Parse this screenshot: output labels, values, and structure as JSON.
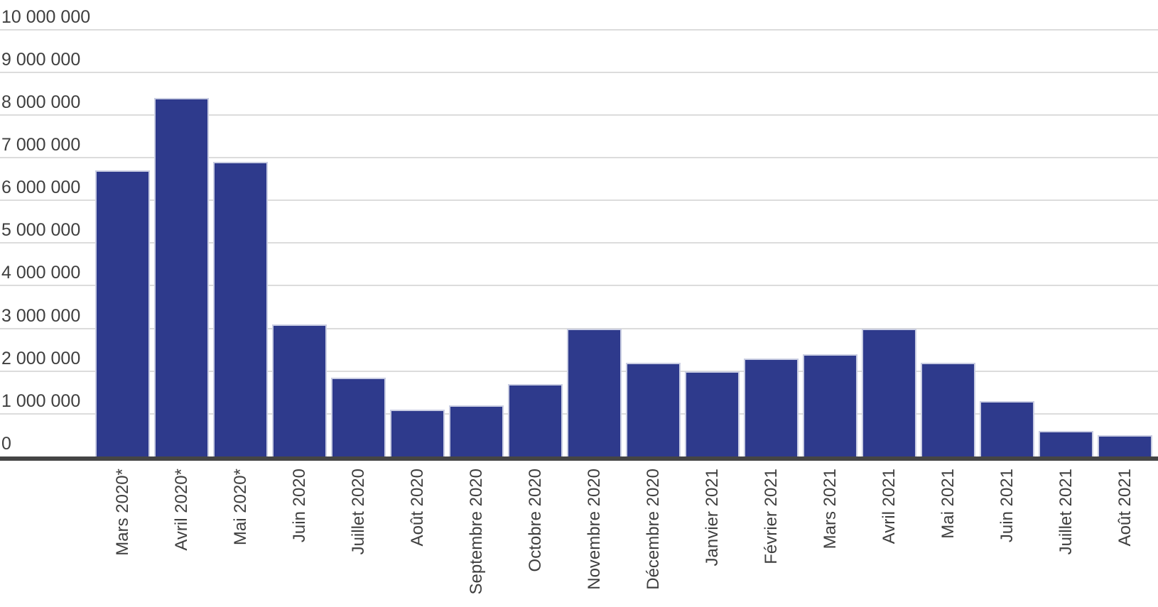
{
  "chart_data": {
    "type": "bar",
    "categories": [
      "Mars 2020*",
      "Avril 2020*",
      "Mai 2020*",
      "Juin 2020",
      "Juillet 2020",
      "Août 2020",
      "Septembre 2020",
      "Octobre 2020",
      "Novembre 2020",
      "Décembre 2020",
      "Janvier 2021",
      "Février 2021",
      "Mars 2021",
      "Avril 2021",
      "Mai 2021",
      "Juin 2021",
      "Juillet 2021",
      "Août 2021"
    ],
    "values": [
      6700000,
      8400000,
      6900000,
      3100000,
      1850000,
      1100000,
      1200000,
      1700000,
      3000000,
      2200000,
      2000000,
      2300000,
      2400000,
      3000000,
      2200000,
      1300000,
      600000,
      500000
    ],
    "title": "",
    "xlabel": "",
    "ylabel": "",
    "ylim": [
      0,
      10000000
    ],
    "ytick_interval": 1000000,
    "ytick_labels": [
      "0",
      "1 000 000",
      "2 000 000",
      "3 000 000",
      "4 000 000",
      "5 000 000",
      "6 000 000",
      "7 000 000",
      "8 000 000",
      "9 000 000",
      "10 000 000"
    ],
    "grid": "horizontal",
    "legend": "none",
    "colors": {
      "bar_fill": "#2e3a8c",
      "bar_border": "#c9cde2",
      "gridline": "#dcdcdc",
      "axis_line": "#454545",
      "tick_text": "#3f3f3f"
    }
  }
}
